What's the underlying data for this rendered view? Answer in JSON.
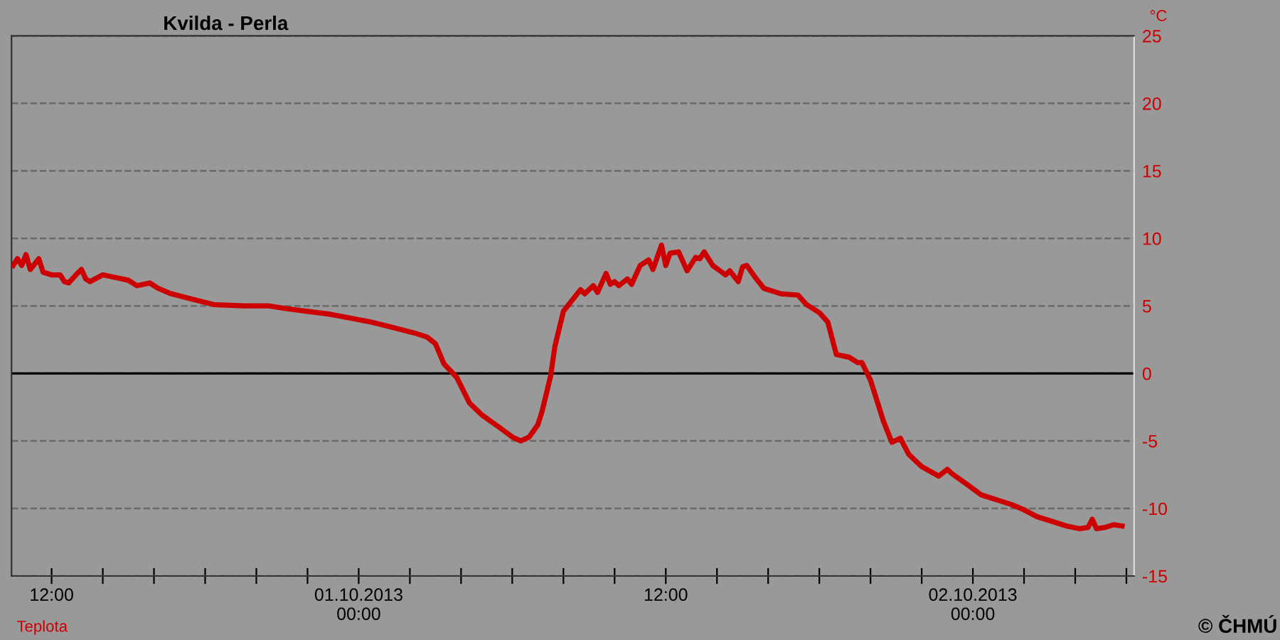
{
  "chart_data": {
    "type": "line",
    "title": "Kvilda - Perla",
    "ylabel": "°C",
    "annotations": [
      "© ČHMÚ"
    ],
    "x": [
      "2013-09-30T10:30",
      "2013-09-30T10:40",
      "2013-09-30T10:50",
      "2013-09-30T11:00",
      "2013-09-30T11:10",
      "2013-09-30T11:30",
      "2013-09-30T11:40",
      "2013-09-30T12:00",
      "2013-09-30T12:20",
      "2013-09-30T12:30",
      "2013-09-30T12:40",
      "2013-09-30T13:00",
      "2013-09-30T13:10",
      "2013-09-30T13:20",
      "2013-09-30T13:30",
      "2013-09-30T14:00",
      "2013-09-30T14:30",
      "2013-09-30T15:00",
      "2013-09-30T15:20",
      "2013-09-30T15:50",
      "2013-09-30T16:10",
      "2013-09-30T16:40",
      "2013-09-30T17:30",
      "2013-09-30T18:20",
      "2013-09-30T19:30",
      "2013-09-30T20:30",
      "2013-09-30T21:10",
      "2013-09-30T22:00",
      "2013-09-30T22:50",
      "2013-09-30T23:40",
      "2013-10-01T00:30",
      "2013-10-01T01:20",
      "2013-10-01T02:10",
      "2013-10-01T02:40",
      "2013-10-01T03:00",
      "2013-10-01T03:20",
      "2013-10-01T03:50",
      "2013-10-01T04:20",
      "2013-10-01T04:50",
      "2013-10-01T05:30",
      "2013-10-01T06:00",
      "2013-10-01T06:20",
      "2013-10-01T06:40",
      "2013-10-01T07:00",
      "2013-10-01T07:10",
      "2013-10-01T07:30",
      "2013-10-01T07:40",
      "2013-10-01T08:00",
      "2013-10-01T08:20",
      "2013-10-01T08:40",
      "2013-10-01T08:50",
      "2013-10-01T09:10",
      "2013-10-01T09:20",
      "2013-10-01T09:40",
      "2013-10-01T09:50",
      "2013-10-01T10:00",
      "2013-10-01T10:10",
      "2013-10-01T10:30",
      "2013-10-01T10:40",
      "2013-10-01T11:00",
      "2013-10-01T11:20",
      "2013-10-01T11:30",
      "2013-10-01T11:50",
      "2013-10-01T12:00",
      "2013-10-01T12:10",
      "2013-10-01T12:30",
      "2013-10-01T12:50",
      "2013-10-01T13:10",
      "2013-10-01T13:20",
      "2013-10-01T13:30",
      "2013-10-01T13:50",
      "2013-10-01T14:20",
      "2013-10-01T14:30",
      "2013-10-01T14:50",
      "2013-10-01T15:00",
      "2013-10-01T15:10",
      "2013-10-01T15:30",
      "2013-10-01T15:50",
      "2013-10-01T16:30",
      "2013-10-01T17:10",
      "2013-10-01T17:30",
      "2013-10-01T18:00",
      "2013-10-01T18:20",
      "2013-10-01T18:40",
      "2013-10-01T19:10",
      "2013-10-01T19:30",
      "2013-10-01T19:40",
      "2013-10-01T20:00",
      "2013-10-01T20:30",
      "2013-10-01T20:50",
      "2013-10-01T21:10",
      "2013-10-01T21:30",
      "2013-10-01T22:00",
      "2013-10-01T22:40",
      "2013-10-01T23:00",
      "2013-10-01T23:10",
      "2013-10-01T23:50",
      "2013-10-02T00:20",
      "2013-10-02T01:00",
      "2013-10-02T01:30",
      "2013-10-02T02:00",
      "2013-10-02T02:30",
      "2013-10-02T03:10",
      "2013-10-02T03:40",
      "2013-10-02T04:10",
      "2013-10-02T04:30",
      "2013-10-02T04:40",
      "2013-10-02T04:50",
      "2013-10-02T05:10",
      "2013-10-02T05:30",
      "2013-10-02T05:50"
    ],
    "series": [
      {
        "name": "Teplota",
        "color": "#cc0000",
        "values": [
          8.0,
          8.5,
          8.0,
          8.8,
          7.7,
          8.5,
          7.5,
          7.3,
          7.3,
          6.8,
          6.7,
          7.4,
          7.7,
          7.0,
          6.8,
          7.3,
          7.1,
          6.9,
          6.5,
          6.7,
          6.3,
          5.9,
          5.5,
          5.1,
          5.0,
          5.0,
          4.8,
          4.6,
          4.4,
          4.1,
          3.8,
          3.4,
          3.0,
          2.7,
          2.2,
          0.7,
          -0.3,
          -2.2,
          -3.1,
          -4.0,
          -4.7,
          -5.0,
          -4.7,
          -3.8,
          -2.8,
          -0.2,
          2.0,
          4.6,
          5.4,
          6.2,
          5.9,
          6.5,
          6.0,
          7.4,
          6.6,
          6.8,
          6.5,
          7.0,
          6.6,
          8.0,
          8.4,
          7.7,
          9.5,
          8.0,
          8.9,
          9.0,
          7.6,
          8.6,
          8.5,
          9.0,
          8.0,
          7.3,
          7.6,
          6.8,
          7.9,
          8.0,
          7.1,
          6.3,
          5.9,
          5.8,
          5.1,
          4.5,
          3.8,
          1.4,
          1.2,
          0.8,
          0.8,
          -0.5,
          -3.5,
          -5.1,
          -4.8,
          -6.0,
          -6.9,
          -7.6,
          -7.1,
          -7.4,
          -8.3,
          -9.0,
          -9.4,
          -9.7,
          -10.1,
          -10.6,
          -11.0,
          -11.3,
          -11.5,
          -11.4,
          -10.8,
          -11.5,
          -11.4,
          -11.2,
          -11.3
        ]
      }
    ],
    "xlim": [
      "2013-09-30T10:26",
      "2013-10-02T06:18"
    ],
    "xticks": [
      {
        "value": "2013-09-30T12:00",
        "label": "12:00"
      },
      {
        "value": "2013-09-30T14:00",
        "label": null
      },
      {
        "value": "2013-09-30T16:00",
        "label": null
      },
      {
        "value": "2013-09-30T18:00",
        "label": null
      },
      {
        "value": "2013-09-30T20:00",
        "label": null
      },
      {
        "value": "2013-09-30T22:00",
        "label": null
      },
      {
        "value": "2013-10-01T00:00",
        "label": "01.10.2013\n00:00"
      },
      {
        "value": "2013-10-01T02:00",
        "label": null
      },
      {
        "value": "2013-10-01T04:00",
        "label": null
      },
      {
        "value": "2013-10-01T06:00",
        "label": null
      },
      {
        "value": "2013-10-01T08:00",
        "label": null
      },
      {
        "value": "2013-10-01T10:00",
        "label": null
      },
      {
        "value": "2013-10-01T12:00",
        "label": "12:00"
      },
      {
        "value": "2013-10-01T14:00",
        "label": null
      },
      {
        "value": "2013-10-01T16:00",
        "label": null
      },
      {
        "value": "2013-10-01T18:00",
        "label": null
      },
      {
        "value": "2013-10-01T20:00",
        "label": null
      },
      {
        "value": "2013-10-01T22:00",
        "label": null
      },
      {
        "value": "2013-10-02T00:00",
        "label": "02.10.2013\n00:00"
      },
      {
        "value": "2013-10-02T02:00",
        "label": null
      },
      {
        "value": "2013-10-02T04:00",
        "label": null
      },
      {
        "value": "2013-10-02T06:00",
        "label": null
      }
    ],
    "ylim": [
      -15,
      25
    ],
    "yticks": [
      -15,
      -10,
      -5,
      0,
      5,
      10,
      15,
      20,
      25
    ],
    "grid": "y",
    "ref_lines": [
      {
        "axis": "y",
        "value": 0,
        "label": null,
        "color": "#000000",
        "line_style": "solid"
      }
    ],
    "marker": "none",
    "line_style": "solid"
  }
}
